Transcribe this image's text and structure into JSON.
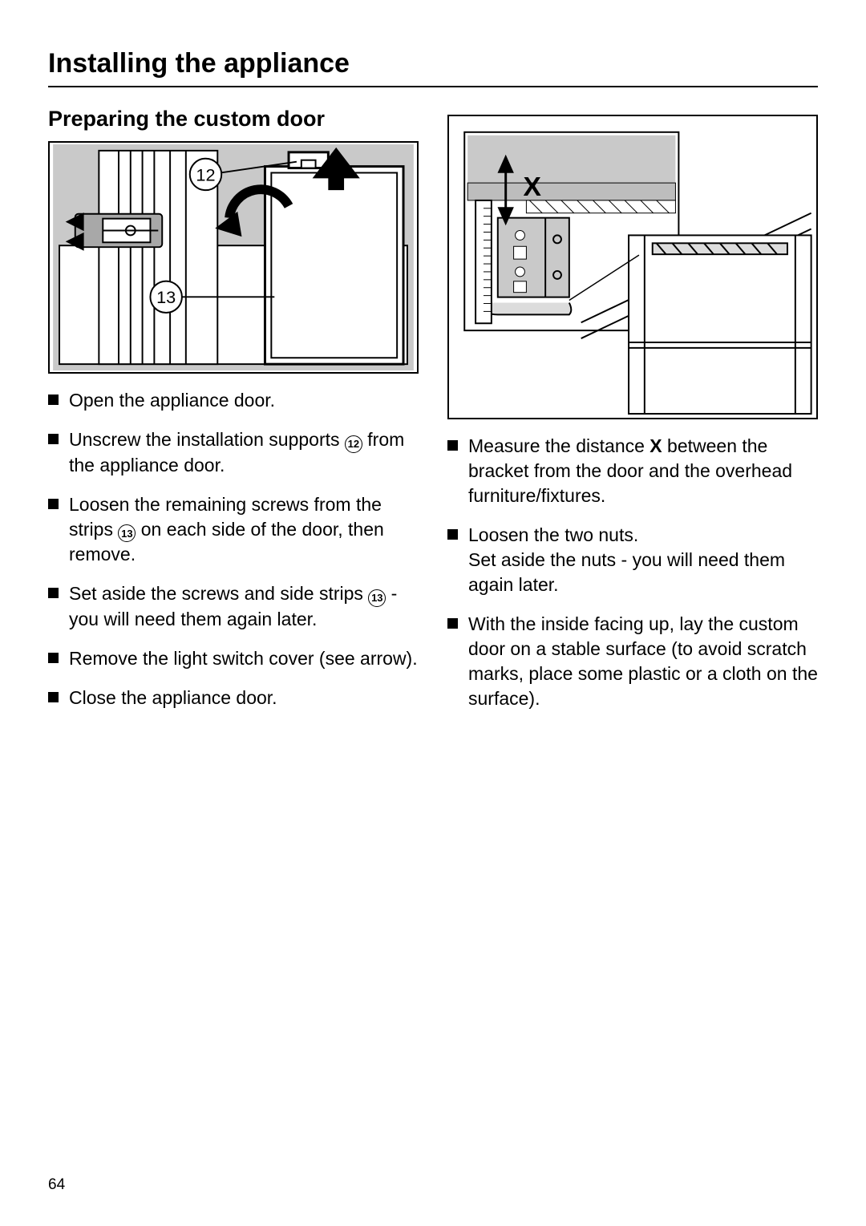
{
  "page": {
    "title": "Installing the appliance",
    "page_number": "64"
  },
  "section": {
    "title": "Preparing the custom door"
  },
  "figures": {
    "fig1": {
      "callout_12": "12",
      "callout_13": "13",
      "background_grey": "#c9c9c9",
      "line_color": "#000000"
    },
    "fig2": {
      "label_x": "X",
      "background_grey": "#c9c9c9",
      "line_color": "#000000"
    }
  },
  "left_steps": [
    {
      "parts": [
        {
          "t": "text",
          "v": "Open the appliance door."
        }
      ]
    },
    {
      "parts": [
        {
          "t": "text",
          "v": "Unscrew the installation supports "
        },
        {
          "t": "circled",
          "v": "12"
        },
        {
          "t": "text",
          "v": " from the appliance door."
        }
      ]
    },
    {
      "parts": [
        {
          "t": "text",
          "v": "Loosen the remaining screws from the strips "
        },
        {
          "t": "circled",
          "v": "13"
        },
        {
          "t": "text",
          "v": " on each side of the door, then remove."
        }
      ]
    },
    {
      "parts": [
        {
          "t": "text",
          "v": "Set aside the screws and side strips "
        },
        {
          "t": "circled",
          "v": "13"
        },
        {
          "t": "text",
          "v": " - you will need them again later."
        }
      ]
    },
    {
      "parts": [
        {
          "t": "text",
          "v": "Remove the light switch cover (see arrow)."
        }
      ]
    },
    {
      "parts": [
        {
          "t": "text",
          "v": "Close the appliance door."
        }
      ]
    }
  ],
  "right_steps": [
    {
      "parts": [
        {
          "t": "text",
          "v": "Measure the distance "
        },
        {
          "t": "bold",
          "v": "X"
        },
        {
          "t": "text",
          "v": " between the bracket from the door and the overhead furniture/fixtures."
        }
      ]
    },
    {
      "parts": [
        {
          "t": "text",
          "v": "Loosen the two nuts."
        },
        {
          "t": "br"
        },
        {
          "t": "text",
          "v": "Set aside the nuts - you will need them again later."
        }
      ]
    },
    {
      "parts": [
        {
          "t": "text",
          "v": "With the inside facing up, lay the custom door on a stable surface (to avoid scratch marks, place some plastic or a cloth on the surface)."
        }
      ]
    }
  ]
}
